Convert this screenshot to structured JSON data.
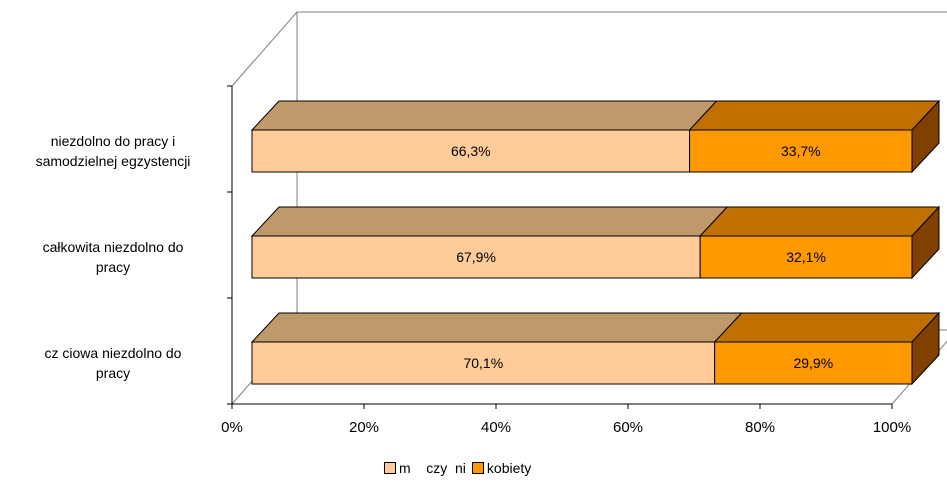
{
  "chart_data": {
    "type": "bar",
    "orientation": "horizontal",
    "stacked": "100%",
    "categories": [
      "niezdolno    do pracy i\nsamodzielnej egzystencji",
      "całkowita niezdolno      do\npracy",
      "cz    ciowa niezdolno      do\npracy"
    ],
    "series": [
      {
        "name": "m    czy  ni",
        "values": [
          66.3,
          67.9,
          70.1
        ],
        "labels": [
          "66,3%",
          "67,9%",
          "70,1%"
        ],
        "color": "#ffcc99"
      },
      {
        "name": "kobiety",
        "values": [
          33.7,
          32.1,
          29.9
        ],
        "labels": [
          "33,7%",
          "32,1%",
          "29,9%"
        ],
        "color": "#ff9900"
      }
    ],
    "xlim": [
      0,
      100
    ],
    "x_ticks": [
      "0%",
      "20%",
      "40%",
      "60%",
      "80%",
      "100%"
    ],
    "grid": false,
    "legend_position": "bottom"
  }
}
